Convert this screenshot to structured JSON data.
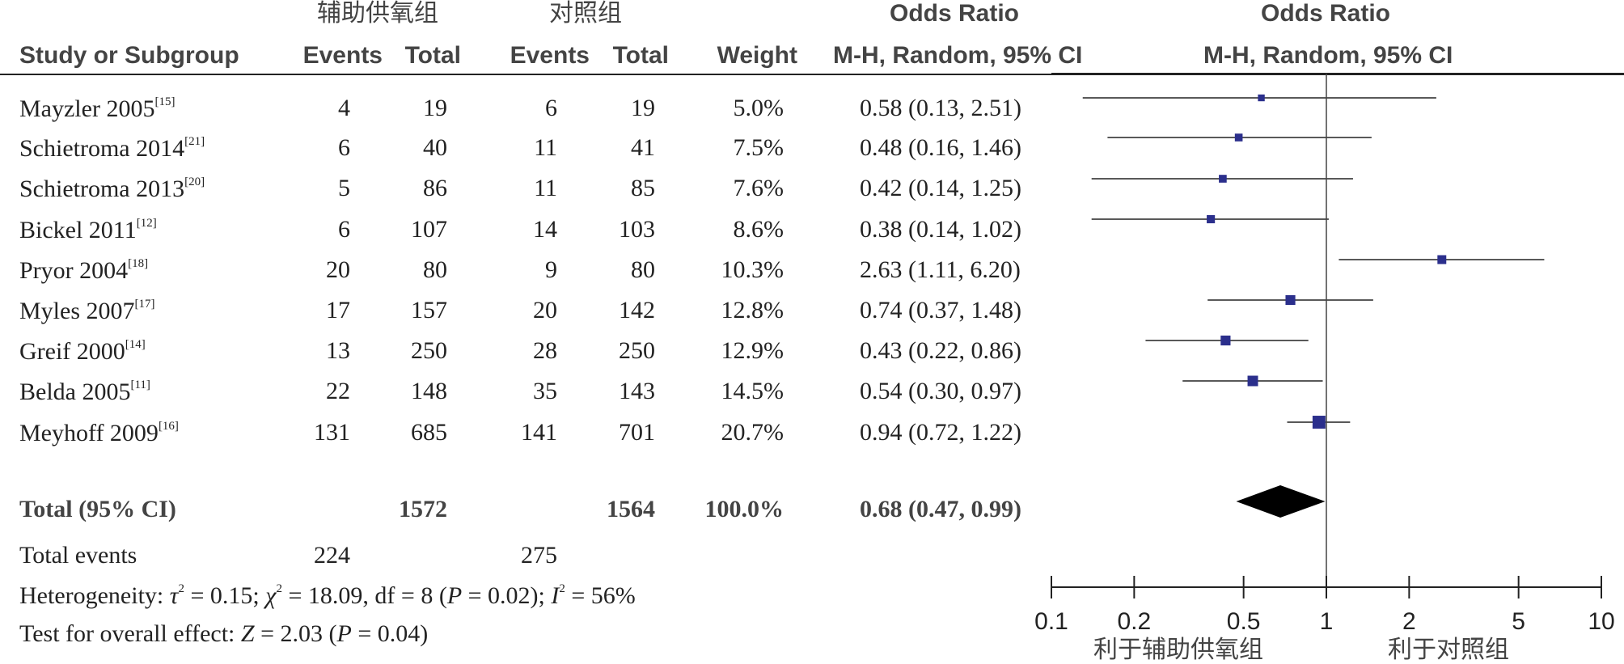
{
  "header": {
    "group1_name": "辅助供氧组",
    "group2_name": "对照组",
    "or_title": "Odds Ratio",
    "or_title_plot": "Odds Ratio",
    "col_study": "Study or Subgroup",
    "col_events1": "Events",
    "col_total1": "Total",
    "col_events2": "Events",
    "col_total2": "Total",
    "col_weight": "Weight",
    "col_method": "M-H, Random, 95% CI",
    "col_method_plot": "M-H, Random, 95% CI"
  },
  "studies": [
    {
      "name": "Mayzler 2005",
      "ref": "[15]",
      "events1": "4",
      "total1": "19",
      "events2": "6",
      "total2": "19",
      "weight": "5.0%",
      "or_text": "0.58 (0.13, 2.51)"
    },
    {
      "name": "Schietroma 2014",
      "ref": "[21]",
      "events1": "6",
      "total1": "40",
      "events2": "11",
      "total2": "41",
      "weight": "7.5%",
      "or_text": "0.48 (0.16, 1.46)"
    },
    {
      "name": "Schietroma 2013",
      "ref": "[20]",
      "events1": "5",
      "total1": "86",
      "events2": "11",
      "total2": "85",
      "weight": "7.6%",
      "or_text": "0.42 (0.14, 1.25)"
    },
    {
      "name": "Bickel 2011",
      "ref": "[12]",
      "events1": "6",
      "total1": "107",
      "events2": "14",
      "total2": "103",
      "weight": "8.6%",
      "or_text": "0.38 (0.14, 1.02)"
    },
    {
      "name": "Pryor 2004",
      "ref": "[18]",
      "events1": "20",
      "total1": "80",
      "events2": "9",
      "total2": "80",
      "weight": "10.3%",
      "or_text": "2.63 (1.11, 6.20)"
    },
    {
      "name": "Myles 2007",
      "ref": "[17]",
      "events1": "17",
      "total1": "157",
      "events2": "20",
      "total2": "142",
      "weight": "12.8%",
      "or_text": "0.74 (0.37, 1.48)"
    },
    {
      "name": "Greif 2000",
      "ref": "[14]",
      "events1": "13",
      "total1": "250",
      "events2": "28",
      "total2": "250",
      "weight": "12.9%",
      "or_text": "0.43 (0.22, 0.86)"
    },
    {
      "name": "Belda 2005",
      "ref": "[11]",
      "events1": "22",
      "total1": "148",
      "events2": "35",
      "total2": "143",
      "weight": "14.5%",
      "or_text": "0.54 (0.30, 0.97)"
    },
    {
      "name": "Meyhoff 2009",
      "ref": "[16]",
      "events1": "131",
      "total1": "685",
      "events2": "141",
      "total2": "701",
      "weight": "20.7%",
      "or_text": "0.94 (0.72, 1.22)"
    }
  ],
  "total_row": {
    "label": "Total (95% CI)",
    "total1": "1572",
    "total2": "1564",
    "weight": "100.0%",
    "or_value": "0.68",
    "or_ci": "(0.47, 0.99)"
  },
  "events_row": {
    "label": "Total events",
    "events1": "224",
    "events2": "275"
  },
  "heterogeneity": {
    "prefix": "Heterogeneity: ",
    "tau_sym": "τ",
    "tau_val": " = 0.15; ",
    "chi_sym": "χ",
    "chi_val": " = 18.09, df = 8 (",
    "p_sym": "P",
    "p_val": " = 0.02); ",
    "i_sym": "I",
    "i_val": " = 56%"
  },
  "overall": {
    "prefix": "Test for overall effect: ",
    "z_sym": "Z",
    "z_val": " = 2.03 (",
    "p_sym": "P",
    "p_val": " = 0.04)"
  },
  "favours": {
    "left": "利于辅助供氧组",
    "right": "利于对照组"
  },
  "chart_data": {
    "type": "forest",
    "scale": "log",
    "xlim": [
      0.1,
      10
    ],
    "ticks": [
      0.1,
      0.2,
      0.5,
      1,
      2,
      5,
      10
    ],
    "tick_labels": [
      "0.1",
      "0.2",
      "0.5",
      "1",
      "2",
      "5",
      "10"
    ],
    "null_line": 1,
    "marker_color": "#2b2f8c",
    "studies": [
      {
        "or": 0.58,
        "lo": 0.13,
        "hi": 2.51,
        "weight": 5.0
      },
      {
        "or": 0.48,
        "lo": 0.16,
        "hi": 1.46,
        "weight": 7.5
      },
      {
        "or": 0.42,
        "lo": 0.14,
        "hi": 1.25,
        "weight": 7.6
      },
      {
        "or": 0.38,
        "lo": 0.14,
        "hi": 1.02,
        "weight": 8.6
      },
      {
        "or": 2.63,
        "lo": 1.11,
        "hi": 6.2,
        "weight": 10.3
      },
      {
        "or": 0.74,
        "lo": 0.37,
        "hi": 1.48,
        "weight": 12.8
      },
      {
        "or": 0.43,
        "lo": 0.22,
        "hi": 0.86,
        "weight": 12.9
      },
      {
        "or": 0.54,
        "lo": 0.3,
        "hi": 0.97,
        "weight": 14.5
      },
      {
        "or": 0.94,
        "lo": 0.72,
        "hi": 1.22,
        "weight": 20.7
      }
    ],
    "pooled": {
      "or": 0.68,
      "lo": 0.47,
      "hi": 0.99
    }
  }
}
